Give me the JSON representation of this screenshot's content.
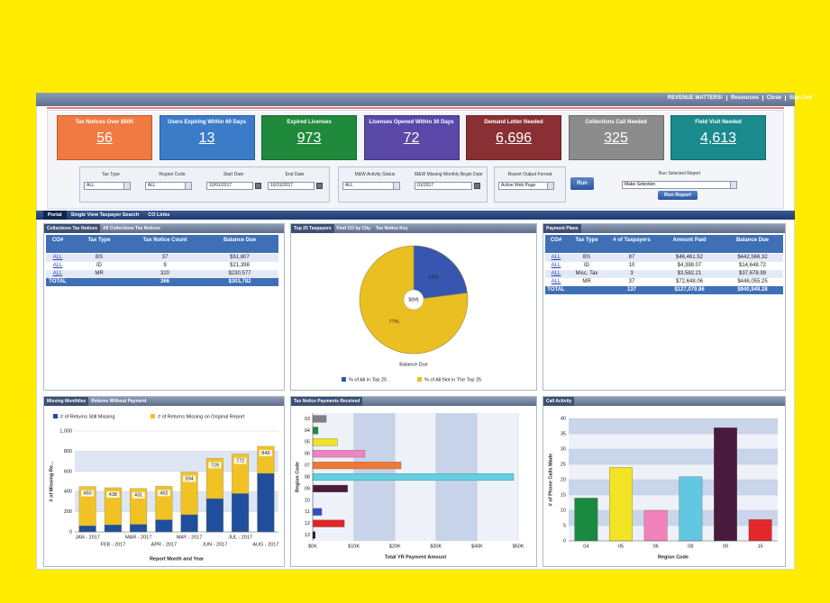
{
  "header_links": [
    "REVENUE MATTERS!",
    "Resources",
    "Close",
    "Sign Out"
  ],
  "kpis": [
    {
      "title": "Tax Notices Over $50K",
      "value": "56",
      "color": "#f07a42"
    },
    {
      "title": "Users Expiring Within 60 Days",
      "value": "13",
      "color": "#3b7cc9"
    },
    {
      "title": "Expired Licenses",
      "value": "973",
      "color": "#1f8a3c"
    },
    {
      "title": "Licenses Opened Within 30 Days",
      "value": "72",
      "color": "#5a48a8"
    },
    {
      "title": "Demand Letter Needed",
      "value": "6,696",
      "color": "#8a2f33"
    },
    {
      "title": "Collections Call Needed",
      "value": "325",
      "color": "#8c8c8c"
    },
    {
      "title": "Field Visit Needed",
      "value": "4,613",
      "color": "#1b8a8c"
    }
  ],
  "filter_groups": [
    [
      {
        "label": "Tax Type",
        "value": "ALL",
        "input": "select"
      },
      {
        "label": "Region Code",
        "value": "ALL",
        "input": "select"
      },
      {
        "label": "Start Date",
        "value": "10/01/2017",
        "input": "date"
      },
      {
        "label": "End Date",
        "value": "10/31/2017",
        "input": "date"
      }
    ],
    [
      {
        "label": "M&W Activity Status",
        "value": "ALL",
        "input": "select"
      },
      {
        "label": "M&W Missing Monthly Begin Date",
        "value": "01/2017",
        "input": "date"
      }
    ],
    [
      {
        "label": "Report Output Format",
        "value": "Active Web Page",
        "input": "select"
      }
    ]
  ],
  "run_button": "Run",
  "report": {
    "label": "Run Selected Report",
    "value": "Make Selection",
    "button": "Run Report"
  },
  "nav_tabs": [
    "Portal",
    "Single View Taxpayer Search",
    "CO Links"
  ],
  "collections": {
    "tabs": [
      "Collections Tax Notices",
      "All Collections Tax Notices"
    ],
    "columns": [
      "CO#",
      "Tax Type",
      "Tax Notice Count",
      "Balance Due"
    ],
    "rows": [
      [
        "ALL",
        "BS",
        "37",
        "$51,807"
      ],
      [
        "ALL",
        "ID",
        "9",
        "$21,398"
      ],
      [
        "ALL",
        "MR",
        "320",
        "$230,577"
      ]
    ],
    "total": [
      "TOTAL",
      null,
      "366",
      "$303,782"
    ]
  },
  "payment_plans": {
    "tabs": [
      "Payment Plans"
    ],
    "columns": [
      "CO#",
      "Tax Type",
      "# of Taxpayers",
      "Amount Paid",
      "Balance Due"
    ],
    "rows": [
      [
        "ALL",
        "BS",
        "87",
        "$46,461.52",
        "$442,566.32"
      ],
      [
        "ALL",
        "ID",
        "10",
        "$4,388.07",
        "$14,648.72"
      ],
      [
        "ALL",
        "Misc. Tax",
        "3",
        "$3,582.21",
        "$37,678.99"
      ],
      [
        "ALL",
        "MR",
        "37",
        "$72,648.06",
        "$446,055.25"
      ]
    ],
    "total": [
      "TOTAL",
      null,
      "137",
      "$127,079.86",
      "$940,949.28"
    ]
  },
  "chart_data": [
    {
      "type": "pie",
      "tabs": [
        "Top 25 Taxpayers",
        "Find CO by City",
        "Tax Notice Key"
      ],
      "title": "Balance Due",
      "center_label": "$(M)",
      "labels": [
        "% of All in Top 25",
        "% of All Not in The Top 25"
      ],
      "values": [
        23,
        77
      ],
      "value_labels": [
        "23%",
        "77%"
      ],
      "colors": [
        "#3656b0",
        "#e9bf22"
      ]
    },
    {
      "type": "overlap-bar",
      "tabs": [
        "Missing Monthlies",
        "Returns Without Payment"
      ],
      "xlabel": "Report Month and Year",
      "ylabel": "# of Missing Re...",
      "categories": [
        "JAN - 2017",
        "FEB - 2017",
        "MAR - 2017",
        "APR - 2017",
        "MAY - 2017",
        "JUN - 2017",
        "JUL - 2017",
        "AUG - 2017"
      ],
      "series": [
        {
          "name": "# of Returns Still Missing",
          "color": "#1f4e9c",
          "values": [
            60,
            70,
            75,
            120,
            170,
            330,
            380,
            580
          ]
        },
        {
          "name": "# of Returns Missing on Original Report",
          "color": "#f0c224",
          "values": [
            450,
            438,
            431,
            452,
            594,
            729,
            772,
            849
          ]
        }
      ],
      "ylim": [
        0,
        1000
      ],
      "yticks": [
        0,
        200,
        400,
        600,
        800,
        {
          "value": 1000,
          "label": "1,000"
        }
      ],
      "grid": true
    },
    {
      "type": "hbar",
      "tabs": [
        "Tax Notice Payments Received"
      ],
      "xlabel": "Total YR Payment Amount",
      "ylabel": "Region Code",
      "categories": [
        "03",
        "04",
        "05",
        "06",
        "07",
        "08",
        "09",
        "10",
        "11",
        "12",
        "13"
      ],
      "values": [
        3300,
        1300,
        6000,
        12700,
        21500,
        48900,
        8500,
        null,
        2200,
        7700,
        600
      ],
      "colors": [
        "#808080",
        "#1f8a3c",
        "#f2e424",
        "#f282c2",
        "#f07a32",
        "#62d0e2",
        "#4a1a3c",
        null,
        "#3050c0",
        "#e22424",
        "#111111"
      ],
      "xlim": [
        0,
        50000
      ],
      "xticks": [
        {
          "value": 0,
          "label": "$0K"
        },
        {
          "value": 10000,
          "label": "$10K"
        },
        {
          "value": 20000,
          "label": "$20K"
        },
        {
          "value": 30000,
          "label": "$30K"
        },
        {
          "value": 40000,
          "label": "$40K"
        },
        {
          "value": 50000,
          "label": "$50K"
        }
      ],
      "grid": true
    },
    {
      "type": "bar",
      "tabs": [
        "Call Activity"
      ],
      "xlabel": "Region Code",
      "ylabel": "# of Phone Calls Made",
      "categories": [
        "04",
        "05",
        "06",
        "08",
        "09",
        "15"
      ],
      "values": [
        14,
        24,
        10,
        21,
        37,
        7
      ],
      "colors": [
        "#1a8a40",
        "#f2e424",
        "#f282ba",
        "#62c8e2",
        "#4a1a3c",
        "#e22828"
      ],
      "ylim": [
        0,
        40
      ],
      "yticks": [
        0,
        5,
        10,
        15,
        20,
        25,
        30,
        35,
        40
      ],
      "grid": true
    }
  ]
}
